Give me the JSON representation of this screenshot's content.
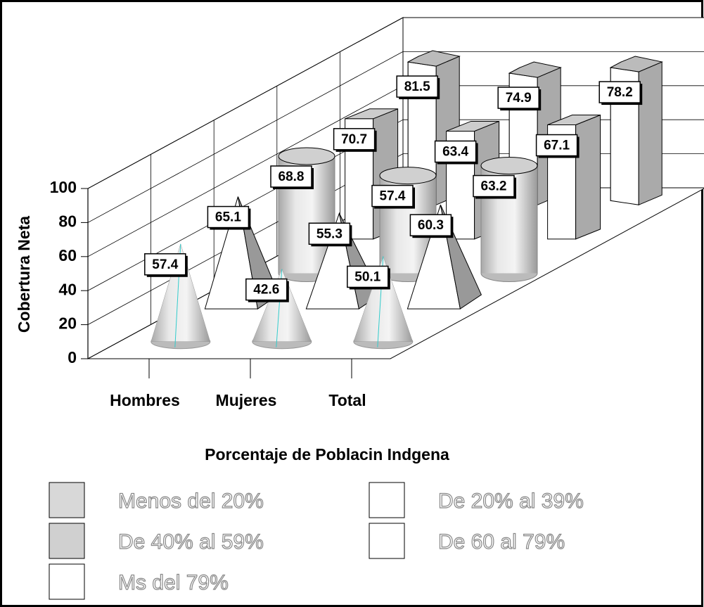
{
  "chart_data": {
    "type": "bar3d",
    "title": "Porcentaje de Poblacin Indgena",
    "ylabel": "Cobertura Neta",
    "categories": [
      "Hombres",
      "Mujeres",
      "Total"
    ],
    "ylim": [
      0,
      100
    ],
    "yticks": [
      0,
      20,
      40,
      60,
      80,
      100
    ],
    "grid": true,
    "series": [
      {
        "name": "Menos del 20%",
        "color": "#d8d8d8",
        "values": [
          57.4,
          42.6,
          50.1
        ]
      },
      {
        "name": "De 20% al 39%",
        "color": "#ffffff",
        "values": [
          65.1,
          55.3,
          60.3
        ]
      },
      {
        "name": "De 40% al 59%",
        "color": "#d0d0d0",
        "values": [
          68.8,
          57.4,
          63.2
        ]
      },
      {
        "name": "De 60 al 79%",
        "color": "#ffffff",
        "values": [
          70.7,
          63.4,
          67.1
        ]
      },
      {
        "name": "Ms del 79%",
        "color": "#ffffff",
        "values": [
          81.5,
          74.9,
          78.2
        ]
      }
    ]
  }
}
